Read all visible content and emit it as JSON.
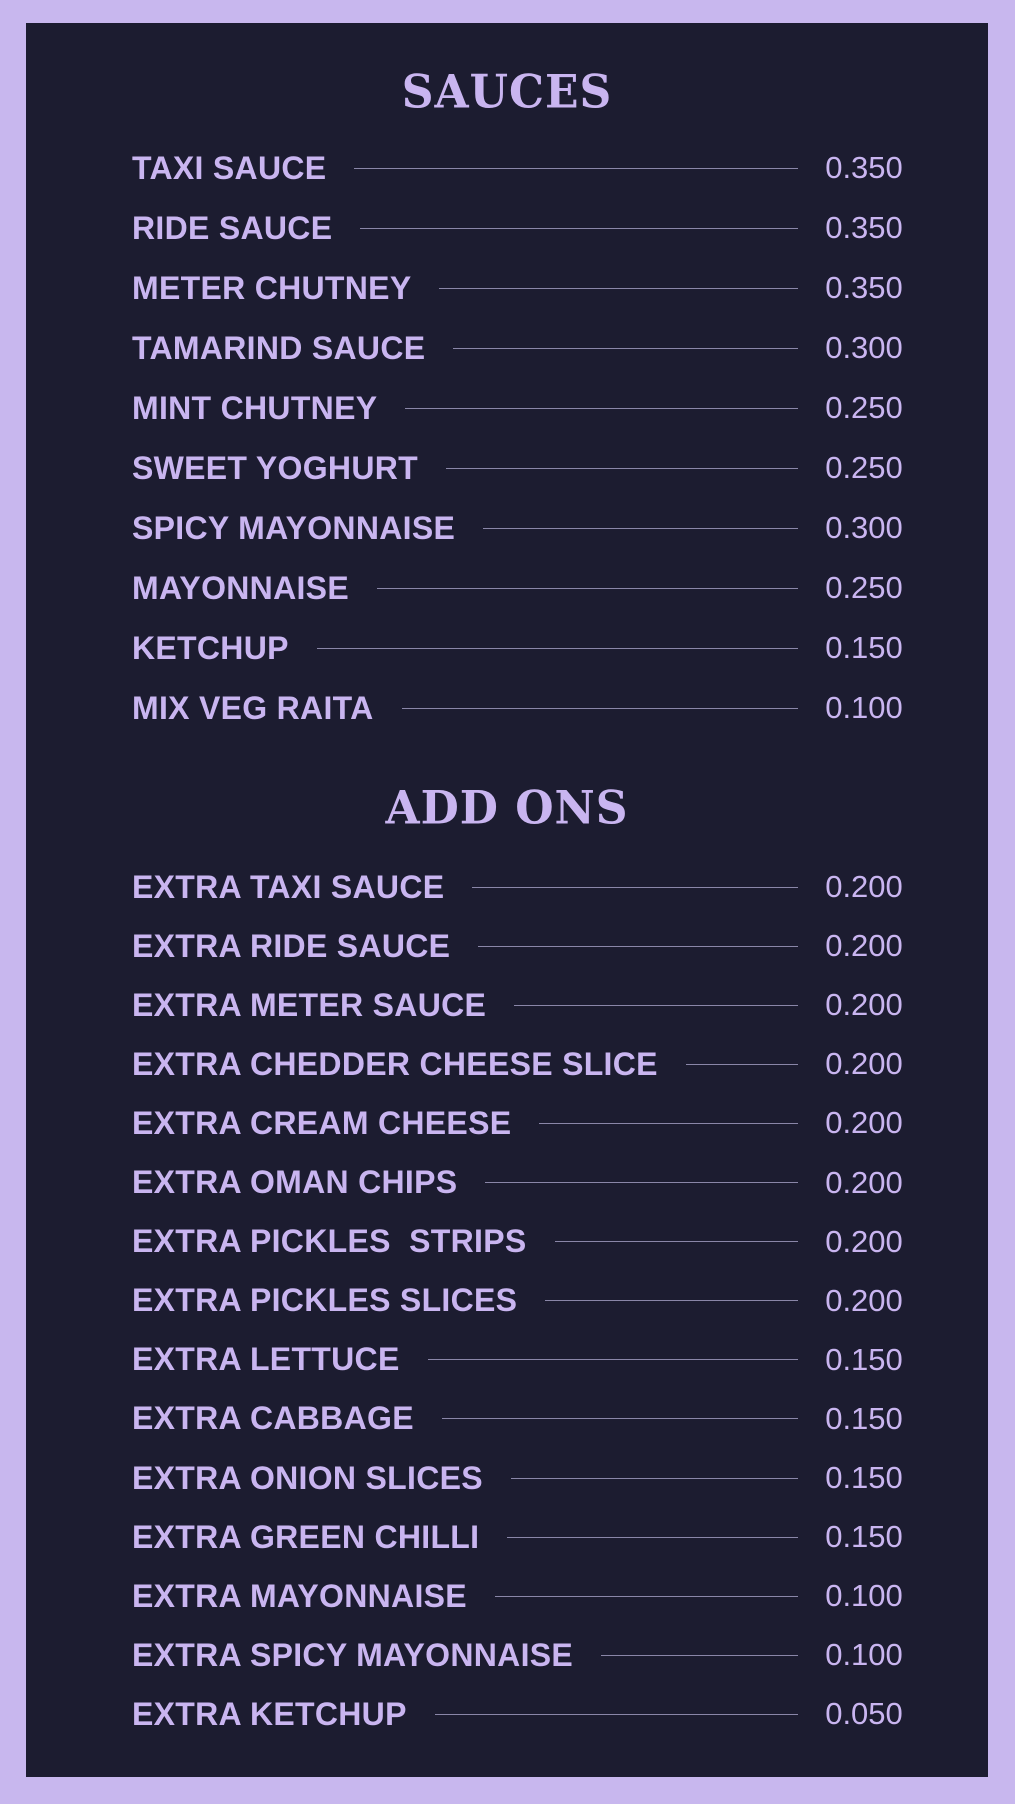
{
  "colors": {
    "background": "#c8b7ee",
    "panel": "#1c1c30",
    "text": "#c9b5f0"
  },
  "sauces": {
    "title": "SAUCES",
    "items": [
      {
        "name": "TAXI SAUCE",
        "price": "0.350"
      },
      {
        "name": "RIDE SAUCE",
        "price": "0.350"
      },
      {
        "name": "METER CHUTNEY",
        "price": "0.350"
      },
      {
        "name": "TAMARIND SAUCE",
        "price": "0.300"
      },
      {
        "name": "MINT CHUTNEY",
        "price": "0.250"
      },
      {
        "name": "SWEET YOGHURT",
        "price": "0.250"
      },
      {
        "name": "SPICY MAYONNAISE",
        "price": "0.300"
      },
      {
        "name": "MAYONNAISE",
        "price": "0.250"
      },
      {
        "name": "KETCHUP",
        "price": "0.150"
      },
      {
        "name": "MIX VEG RAITA",
        "price": "0.100"
      }
    ]
  },
  "addons": {
    "title": "ADD ONS",
    "items": [
      {
        "name": "EXTRA TAXI SAUCE",
        "price": "0.200"
      },
      {
        "name": "EXTRA RIDE SAUCE",
        "price": "0.200"
      },
      {
        "name": "EXTRA METER SAUCE",
        "price": "0.200"
      },
      {
        "name": "EXTRA CHEDDER CHEESE SLICE",
        "price": "0.200"
      },
      {
        "name": "EXTRA CREAM CHEESE",
        "price": "0.200"
      },
      {
        "name": "EXTRA OMAN CHIPS",
        "price": "0.200"
      },
      {
        "name": "EXTRA PICKLES  STRIPS",
        "price": "0.200"
      },
      {
        "name": "EXTRA PICKLES SLICES",
        "price": "0.200"
      },
      {
        "name": "EXTRA LETTUCE",
        "price": "0.150"
      },
      {
        "name": "EXTRA CABBAGE",
        "price": "0.150"
      },
      {
        "name": "EXTRA ONION SLICES",
        "price": "0.150"
      },
      {
        "name": "EXTRA GREEN CHILLI",
        "price": "0.150"
      },
      {
        "name": "EXTRA MAYONNAISE",
        "price": "0.100"
      },
      {
        "name": "EXTRA SPICY MAYONNAISE",
        "price": "0.100"
      },
      {
        "name": "EXTRA KETCHUP",
        "price": "0.050"
      }
    ]
  }
}
